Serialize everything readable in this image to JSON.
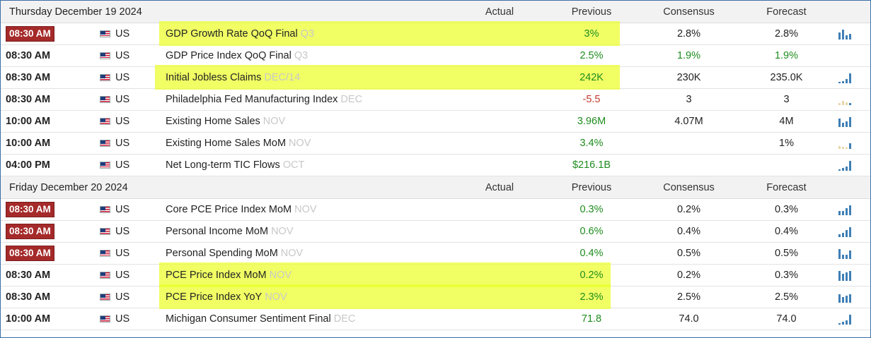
{
  "sections": [
    {
      "date": "Thursday December 19 2024",
      "columns": {
        "actual": "Actual",
        "previous": "Previous",
        "consensus": "Consensus",
        "forecast": "Forecast"
      },
      "rows": [
        {
          "time": "08:30 AM",
          "badge": true,
          "country": "US",
          "event": "GDP Growth Rate QoQ Final",
          "period": "Q3",
          "previous": "3%",
          "prev_color": "green",
          "consensus": "2.8%",
          "cons_color": "",
          "forecast": "2.8%",
          "fore_color": "",
          "highlight": true,
          "spark": [
            10,
            14,
            6,
            8
          ]
        },
        {
          "time": "08:30 AM",
          "badge": false,
          "country": "US",
          "event": "GDP Price Index QoQ Final",
          "period": "Q3",
          "previous": "2.5%",
          "prev_color": "green",
          "consensus": "1.9%",
          "cons_color": "green",
          "forecast": "1.9%",
          "fore_color": "green",
          "highlight": false,
          "spark": []
        },
        {
          "time": "08:30 AM",
          "badge": false,
          "country": "US",
          "event": "Initial Jobless Claims",
          "period": "DEC/14",
          "previous": "242K",
          "prev_color": "green",
          "consensus": "230K",
          "cons_color": "",
          "forecast": "235.0K",
          "fore_color": "",
          "highlight": true,
          "spark": [
            2,
            3,
            6,
            14
          ]
        },
        {
          "time": "08:30 AM",
          "badge": false,
          "country": "US",
          "event": "Philadelphia Fed Manufacturing Index",
          "period": "DEC",
          "previous": "-5.5",
          "prev_color": "red",
          "consensus": "3",
          "cons_color": "",
          "forecast": "3",
          "fore_color": "",
          "highlight": false,
          "spark": [
            3,
            6,
            4,
            3
          ],
          "spark_light": true
        },
        {
          "time": "10:00 AM",
          "badge": false,
          "country": "US",
          "event": "Existing Home Sales",
          "period": "NOV",
          "previous": "3.96M",
          "prev_color": "green",
          "consensus": "4.07M",
          "cons_color": "",
          "forecast": "4M",
          "fore_color": "",
          "highlight": false,
          "spark": [
            12,
            6,
            8,
            14
          ]
        },
        {
          "time": "10:00 AM",
          "badge": false,
          "country": "US",
          "event": "Existing Home Sales MoM",
          "period": "NOV",
          "previous": "3.4%",
          "prev_color": "green",
          "consensus": "",
          "cons_color": "",
          "forecast": "1%",
          "fore_color": "",
          "highlight": false,
          "spark": [
            4,
            3,
            2,
            8
          ],
          "spark_light": true
        },
        {
          "time": "04:00 PM",
          "badge": false,
          "country": "US",
          "event": "Net Long-term TIC Flows",
          "period": "OCT",
          "previous": "$216.1B",
          "prev_color": "green",
          "consensus": "",
          "cons_color": "",
          "forecast": "",
          "fore_color": "",
          "highlight": false,
          "spark": [
            2,
            4,
            6,
            14
          ]
        }
      ]
    },
    {
      "date": "Friday December 20 2024",
      "columns": {
        "actual": "Actual",
        "previous": "Previous",
        "consensus": "Consensus",
        "forecast": "Forecast"
      },
      "rows": [
        {
          "time": "08:30 AM",
          "badge": true,
          "country": "US",
          "event": "Core PCE Price Index MoM",
          "period": "NOV",
          "previous": "0.3%",
          "prev_color": "green",
          "consensus": "0.2%",
          "cons_color": "",
          "forecast": "0.3%",
          "fore_color": "",
          "highlight": false,
          "spark": [
            6,
            6,
            10,
            14
          ]
        },
        {
          "time": "08:30 AM",
          "badge": true,
          "country": "US",
          "event": "Personal Income MoM",
          "period": "NOV",
          "previous": "0.6%",
          "prev_color": "green",
          "consensus": "0.4%",
          "cons_color": "",
          "forecast": "0.4%",
          "fore_color": "",
          "highlight": false,
          "spark": [
            4,
            6,
            10,
            14
          ]
        },
        {
          "time": "08:30 AM",
          "badge": true,
          "country": "US",
          "event": "Personal Spending MoM",
          "period": "NOV",
          "previous": "0.4%",
          "prev_color": "green",
          "consensus": "0.5%",
          "cons_color": "",
          "forecast": "0.5%",
          "fore_color": "",
          "highlight": false,
          "spark": [
            14,
            6,
            6,
            12
          ]
        },
        {
          "time": "08:30 AM",
          "badge": false,
          "country": "US",
          "event": "PCE Price Index MoM",
          "period": "NOV",
          "previous": "0.2%",
          "prev_color": "green",
          "consensus": "0.2%",
          "cons_color": "",
          "forecast": "0.3%",
          "fore_color": "",
          "highlight": true,
          "spark": [
            14,
            10,
            12,
            14
          ]
        },
        {
          "time": "08:30 AM",
          "badge": false,
          "country": "US",
          "event": "PCE Price Index YoY",
          "period": "NOV",
          "previous": "2.3%",
          "prev_color": "green",
          "consensus": "2.5%",
          "cons_color": "",
          "forecast": "2.5%",
          "fore_color": "",
          "highlight": true,
          "spark": [
            12,
            8,
            10,
            12
          ]
        },
        {
          "time": "10:00 AM",
          "badge": false,
          "country": "US",
          "event": "Michigan Consumer Sentiment Final",
          "period": "DEC",
          "previous": "71.8",
          "prev_color": "green",
          "consensus": "74.0",
          "cons_color": "",
          "forecast": "74.0",
          "fore_color": "",
          "highlight": false,
          "spark": [
            2,
            4,
            6,
            14
          ]
        }
      ]
    }
  ]
}
